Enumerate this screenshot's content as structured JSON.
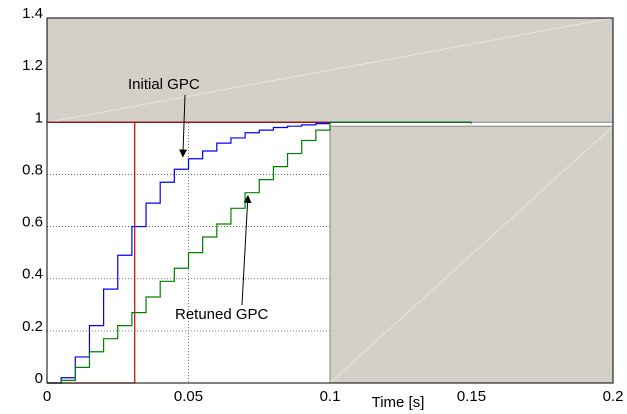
{
  "chart_data": {
    "type": "line",
    "xlabel": "Time [s]",
    "x": [
      0,
      0.005,
      0.01,
      0.015,
      0.02,
      0.025,
      0.03,
      0.035,
      0.04,
      0.045,
      0.05,
      0.055,
      0.06,
      0.065,
      0.07,
      0.075,
      0.08,
      0.085,
      0.09,
      0.095,
      0.1,
      0.15
    ],
    "series": [
      {
        "name": "Initial GPC",
        "color": "#0000ff",
        "values": [
          0,
          0.02,
          0.1,
          0.22,
          0.36,
          0.49,
          0.6,
          0.69,
          0.77,
          0.82,
          0.86,
          0.89,
          0.92,
          0.94,
          0.96,
          0.97,
          0.98,
          0.985,
          0.99,
          0.995,
          1,
          1
        ]
      },
      {
        "name": "Retuned GPC",
        "color": "#008000",
        "values": [
          0,
          0.01,
          0.06,
          0.12,
          0.17,
          0.22,
          0.27,
          0.33,
          0.39,
          0.44,
          0.5,
          0.56,
          0.61,
          0.67,
          0.73,
          0.78,
          0.83,
          0.88,
          0.93,
          0.97,
          1,
          1
        ]
      }
    ],
    "bounds": {
      "rise_time": 0.031,
      "settling_time": 0.1,
      "upper": 1,
      "lower": 0.985,
      "color": "#cc0000",
      "region_color": "#d4d0c8"
    },
    "xlim": [
      0,
      0.2
    ],
    "ylim": [
      0,
      1.4
    ],
    "xticks": [
      0,
      0.05,
      0.1,
      0.15,
      0.2
    ],
    "yticks": [
      0,
      0.2,
      0.4,
      0.6,
      0.8,
      1,
      1.2,
      1.4
    ],
    "grid": true
  }
}
